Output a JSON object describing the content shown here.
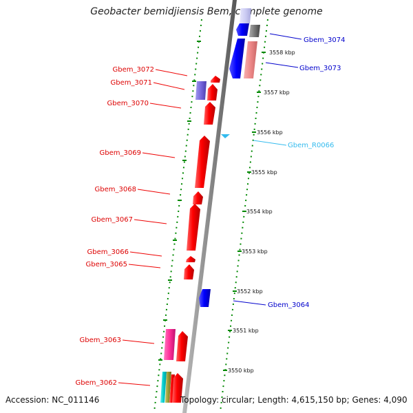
{
  "title": "Geobacter bemidjiensis Bem, complete genome",
  "footer": {
    "accession": "Accession: NC_011146",
    "info": "Topology: circular; Length: 4,615,150 bp; Genes: 4,090"
  },
  "colors": {
    "forward_gene": "#ff0000",
    "reverse_gene": "#0000ff",
    "rna": "#33bbee",
    "pink": "#ff3399",
    "light_red": "#ee8888",
    "grey": "#777777",
    "lavender": "#ccccf4",
    "purple": "#7766dd",
    "teal": "#00cccc",
    "olive": "#999933",
    "tick_green": "#008800",
    "backbone": "#888888"
  },
  "scale_labels": [
    "3558 kbp",
    "3557 kbp",
    "3556 kbp",
    "3555 kbp",
    "3554 kbp",
    "3553 kbp",
    "3552 kbp",
    "3551 kbp",
    "3550 kbp"
  ],
  "genes_left": [
    {
      "label": "Gbem_3072",
      "color": "red"
    },
    {
      "label": "Gbem_3071",
      "color": "red"
    },
    {
      "label": "Gbem_3070",
      "color": "red"
    },
    {
      "label": "Gbem_3069",
      "color": "red"
    },
    {
      "label": "Gbem_3068",
      "color": "red"
    },
    {
      "label": "Gbem_3067",
      "color": "red"
    },
    {
      "label": "Gbem_3066",
      "color": "red"
    },
    {
      "label": "Gbem_3065",
      "color": "red"
    },
    {
      "label": "Gbem_3063",
      "color": "red"
    },
    {
      "label": "Gbem_3062",
      "color": "red"
    }
  ],
  "genes_right": [
    {
      "label": "Gbem_3074",
      "color": "blue"
    },
    {
      "label": "Gbem_3073",
      "color": "blue"
    },
    {
      "label": "Gbem_R0066",
      "color": "cyan"
    },
    {
      "label": "Gbem_3064",
      "color": "blue"
    }
  ]
}
